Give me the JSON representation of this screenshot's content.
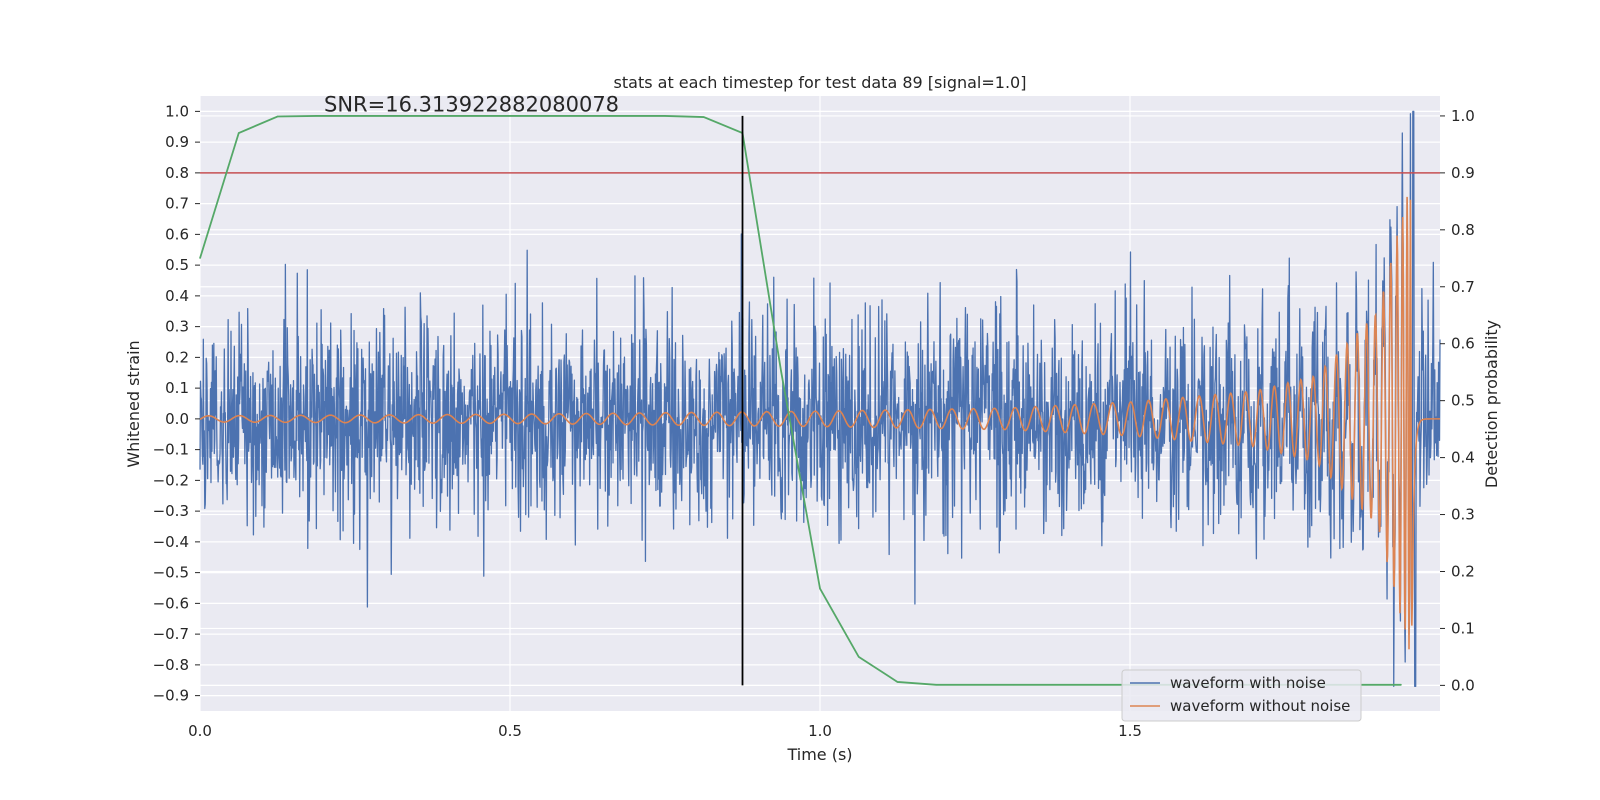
{
  "chart_data": {
    "type": "line",
    "title": "stats at each timestep for test data 89 [signal=1.0]",
    "xlabel": "Time (s)",
    "ylabel_left": "Whitened strain",
    "ylabel_right": "Detection probability",
    "xlim": [
      0.0,
      2.0
    ],
    "ylim_left": [
      -0.95,
      1.05
    ],
    "ylim_right": [
      -0.045,
      1.035
    ],
    "x_ticks": [
      0.0,
      0.5,
      1.0,
      1.5
    ],
    "x_tick_labels": [
      "0.0",
      "0.5",
      "1.0",
      "1.5"
    ],
    "y_left_ticks": [
      1.0,
      0.9,
      0.8,
      0.7,
      0.6,
      0.5,
      0.4,
      0.3,
      0.2,
      0.1,
      0.0,
      -0.1,
      -0.2,
      -0.3,
      -0.4,
      -0.5,
      -0.6,
      -0.7,
      -0.8,
      -0.9
    ],
    "y_left_tick_labels": [
      "1.0",
      "0.9",
      "0.8",
      "0.7",
      "0.6",
      "0.5",
      "0.4",
      "0.3",
      "0.2",
      "0.1",
      "0.0",
      "−0.1",
      "−0.2",
      "−0.3",
      "−0.4",
      "−0.5",
      "−0.6",
      "−0.7",
      "−0.8",
      "−0.9"
    ],
    "y_right_ticks": [
      1.0,
      0.9,
      0.8,
      0.7,
      0.6,
      0.5,
      0.4,
      0.3,
      0.2,
      0.1,
      0.0
    ],
    "y_right_tick_labels": [
      "1.0",
      "0.9",
      "0.8",
      "0.7",
      "0.6",
      "0.5",
      "0.4",
      "0.3",
      "0.2",
      "0.1",
      "0.0"
    ],
    "annotation": "SNR=16.313922882080078",
    "annotation_anchor": [
      0.2,
      1.0
    ],
    "threshold": {
      "axis": "right",
      "y": 0.9,
      "color": "#c44e52"
    },
    "vertical_marker": {
      "x": 0.875,
      "ymin": 0.0,
      "ymax": 1.0,
      "axis": "right",
      "color": "#000000"
    },
    "grid": true,
    "legend_position": "lower-right",
    "series": [
      {
        "name": "waveform with noise",
        "axis": "left",
        "color": "#4c72b0",
        "description": "dense noisy whitened strain, roughly within ±0.5, spikes up to 1.0 near t≈1.96",
        "noise_std": 0.17,
        "peak": {
          "x": 1.957,
          "y": 1.0,
          "min": -0.87
        }
      },
      {
        "name": "waveform without noise",
        "axis": "left",
        "color": "#dd8452",
        "description": "chirp signal, amplitude growing from ~0.01 to ~0.75 near merger at t≈1.95",
        "envelope": {
          "x": [
            0.0,
            0.5,
            1.0,
            1.3,
            1.5,
            1.7,
            1.8,
            1.9,
            1.95,
            2.0
          ],
          "y": [
            0.01,
            0.015,
            0.025,
            0.035,
            0.055,
            0.09,
            0.14,
            0.35,
            0.75,
            0.0
          ]
        }
      },
      {
        "name": "detection probability",
        "axis": "right",
        "color": "#55a868",
        "x": [
          0.0,
          0.0625,
          0.125,
          0.1875,
          0.25,
          0.3125,
          0.375,
          0.4375,
          0.5,
          0.5625,
          0.625,
          0.6875,
          0.75,
          0.8125,
          0.875,
          0.9375,
          1.0,
          1.0625,
          1.125,
          1.1875,
          1.25,
          1.3125,
          1.375,
          1.4375,
          1.5,
          1.5625,
          1.625,
          1.6875,
          1.75,
          1.8125,
          1.875,
          1.9375
        ],
        "y": [
          0.75,
          0.97,
          0.999,
          1.0,
          1.0,
          1.0,
          1.0,
          1.0,
          1.0,
          1.0,
          1.0,
          1.0,
          1.0,
          0.998,
          0.97,
          0.55,
          0.17,
          0.05,
          0.006,
          0.001,
          0.001,
          0.001,
          0.001,
          0.001,
          0.001,
          0.001,
          0.001,
          0.001,
          0.001,
          0.001,
          0.001,
          0.001
        ]
      }
    ]
  }
}
